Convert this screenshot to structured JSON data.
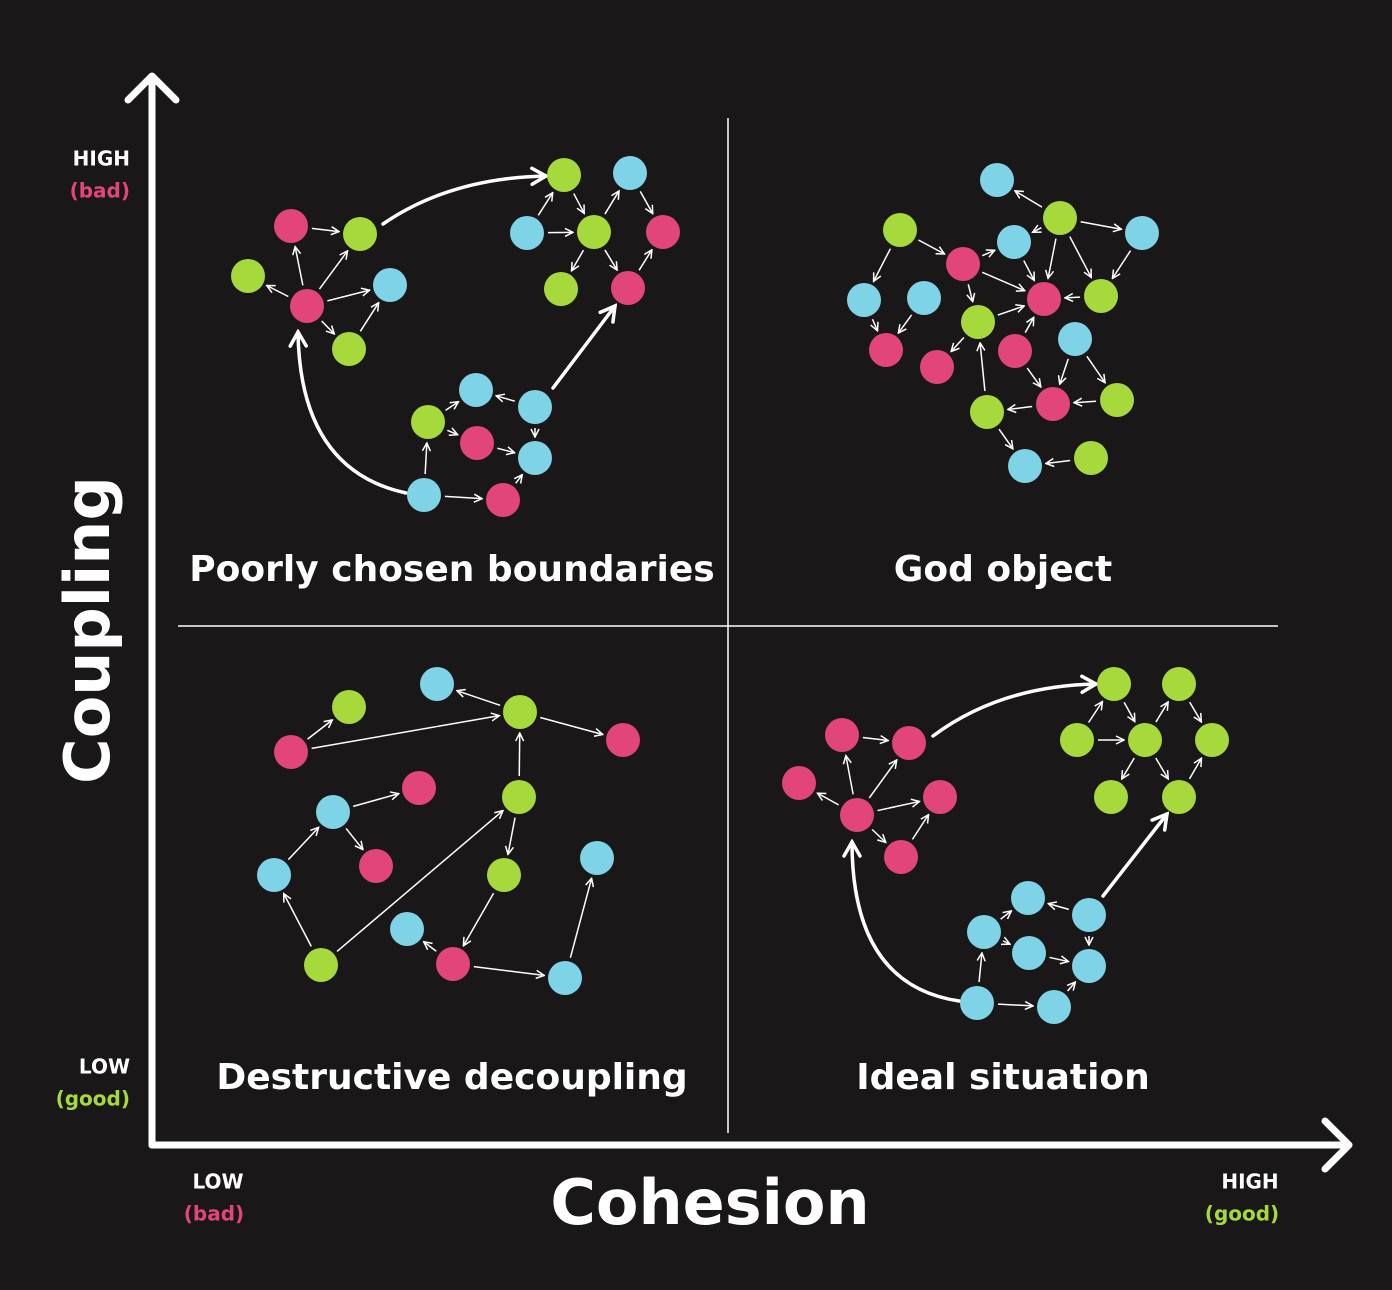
{
  "axes": {
    "y": {
      "title": "Coupling",
      "high": {
        "label": "HIGH",
        "note": "(bad)"
      },
      "low": {
        "label": "LOW",
        "note": "(good)"
      }
    },
    "x": {
      "title": "Cohesion",
      "low": {
        "label": "LOW",
        "note": "(bad)"
      },
      "high": {
        "label": "HIGH",
        "note": "(good)"
      }
    }
  },
  "quadrants": [
    {
      "title": "Poorly chosen boundaries"
    },
    {
      "title": "God object"
    },
    {
      "title": "Destructive decoupling"
    },
    {
      "title": "Ideal situation"
    }
  ]
}
